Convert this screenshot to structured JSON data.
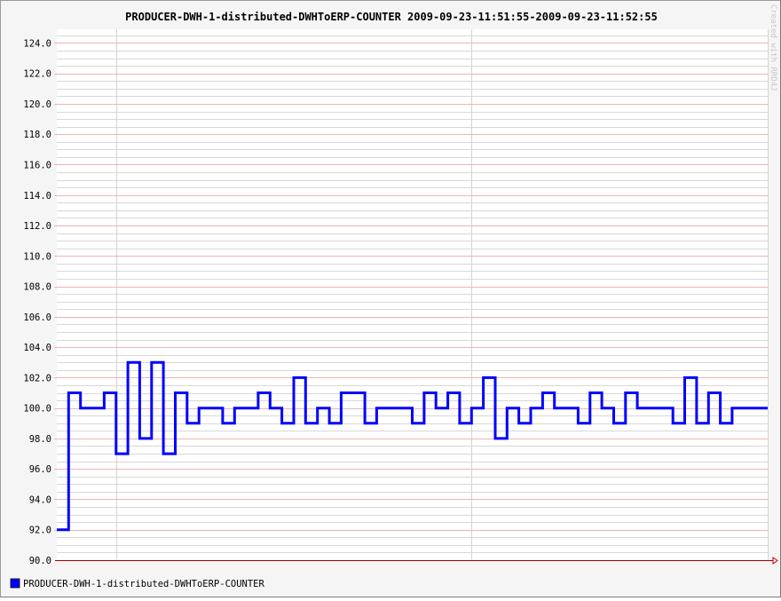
{
  "chart_data": {
    "type": "line",
    "step": true,
    "title": "PRODUCER-DWH-1-distributed-DWHToERP-COUNTER 2009-09-23-11:51:55-2009-09-23-11:52:55",
    "watermark": "Created with RRD4J",
    "xlabel": "",
    "ylabel": "",
    "ylim": [
      90,
      124.9
    ],
    "xlim": [
      0,
      60
    ],
    "grid": true,
    "legend_position": "bottom-left",
    "y_ticks": [
      "90.0",
      "92.0",
      "94.0",
      "96.0",
      "98.0",
      "100.0",
      "102.0",
      "104.0",
      "106.0",
      "108.0",
      "110.0",
      "112.0",
      "114.0",
      "116.0",
      "118.0",
      "120.0",
      "122.0",
      "124.0"
    ],
    "series": [
      {
        "name": "PRODUCER-DWH-1-distributed-DWHToERP-COUNTER",
        "color": "#0000ff",
        "values": [
          92,
          101,
          100,
          100,
          101,
          97,
          103,
          98,
          103,
          97,
          101,
          99,
          100,
          100,
          99,
          100,
          100,
          101,
          100,
          99,
          102,
          99,
          100,
          99,
          101,
          101,
          99,
          100,
          100,
          100,
          99,
          101,
          100,
          101,
          99,
          100,
          102,
          98,
          100,
          99,
          100,
          101,
          100,
          100,
          99,
          101,
          100,
          99,
          101,
          100,
          100,
          100,
          99,
          102,
          99,
          101,
          99,
          100,
          100,
          100
        ]
      }
    ],
    "colors": {
      "background": "#f5f5f5",
      "plot_background": "#ffffff",
      "major_grid": "#f0b4b4",
      "minor_grid": "#d8d8d8",
      "x_grid": "#d3d3d3",
      "axis": "#a00000",
      "series": "#0000ff"
    }
  }
}
